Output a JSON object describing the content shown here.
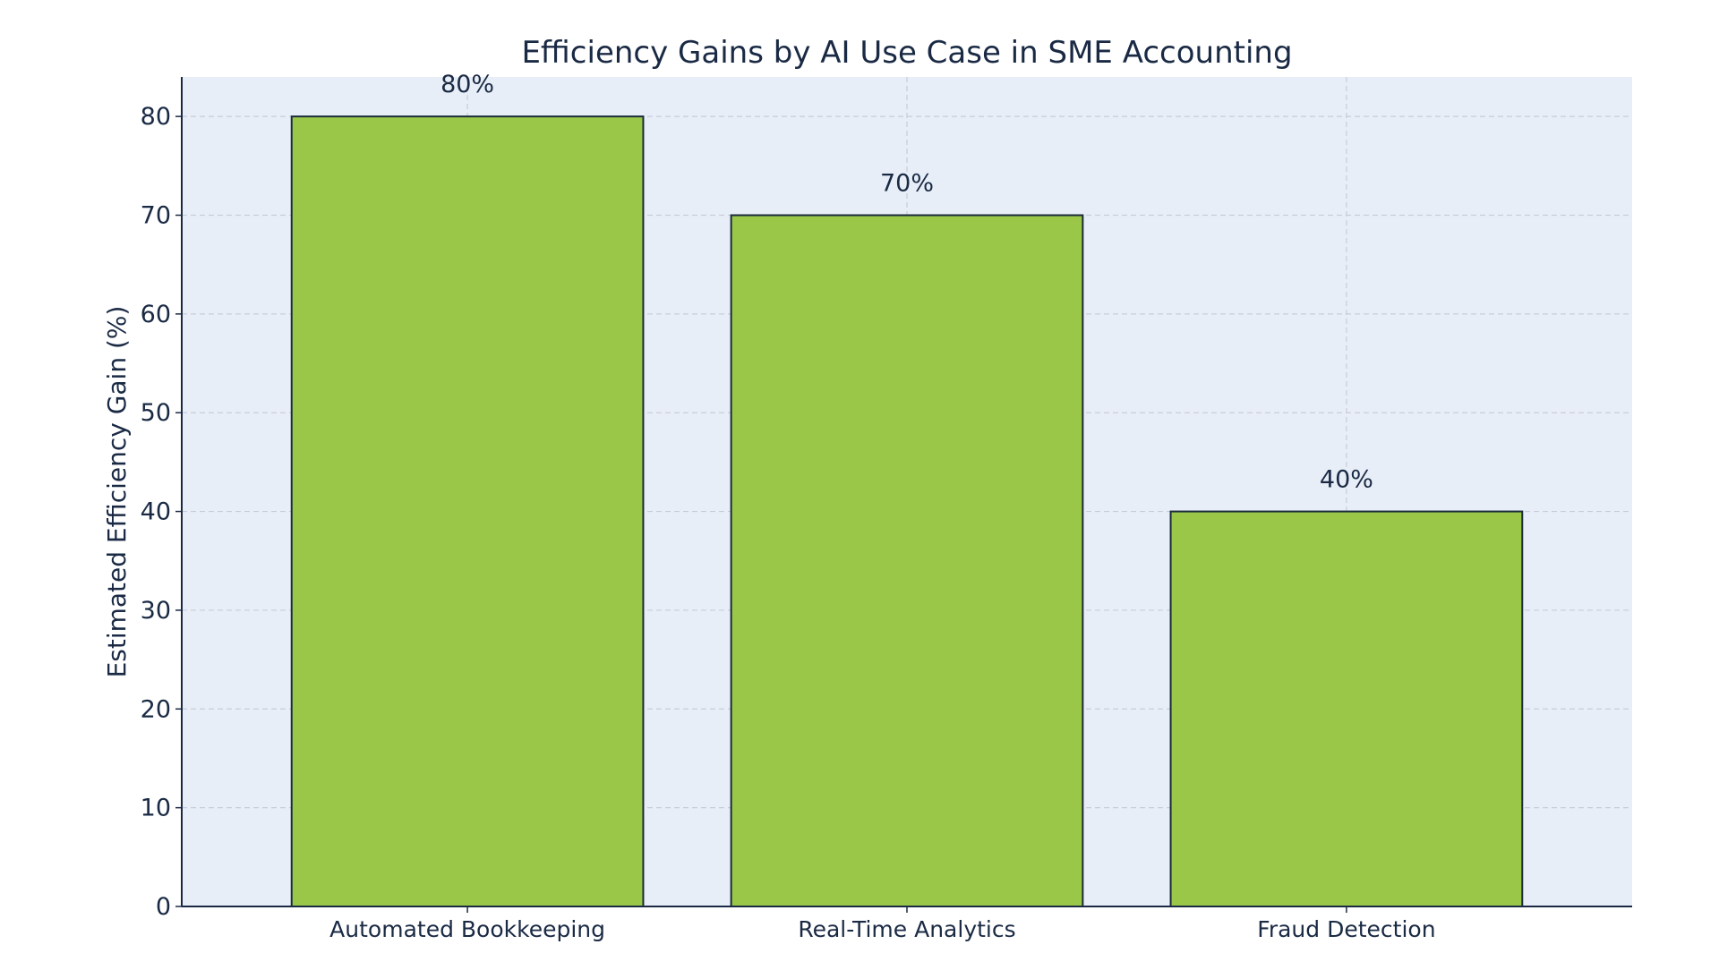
{
  "chart_data": {
    "type": "bar",
    "title": "Efficiency Gains by AI Use Case in SME Accounting",
    "xlabel": "",
    "ylabel": "Estimated Efficiency Gain (%)",
    "categories": [
      "Automated Bookkeeping",
      "Real-Time Analytics",
      "Fraud Detection"
    ],
    "values": [
      80,
      70,
      40
    ],
    "value_labels": [
      "80%",
      "70%",
      "40%"
    ],
    "ylim": [
      0,
      84
    ],
    "yticks": [
      0,
      10,
      20,
      30,
      40,
      50,
      60,
      70,
      80
    ],
    "grid": true,
    "legend": "none",
    "colors": {
      "bar_fill": "#9ac748",
      "bar_edge": "#1a2a3a",
      "plot_background": "#e8eef7",
      "grid": "#c8ccd8",
      "text": "#1a2a44",
      "axis": "#1a2a44"
    }
  }
}
